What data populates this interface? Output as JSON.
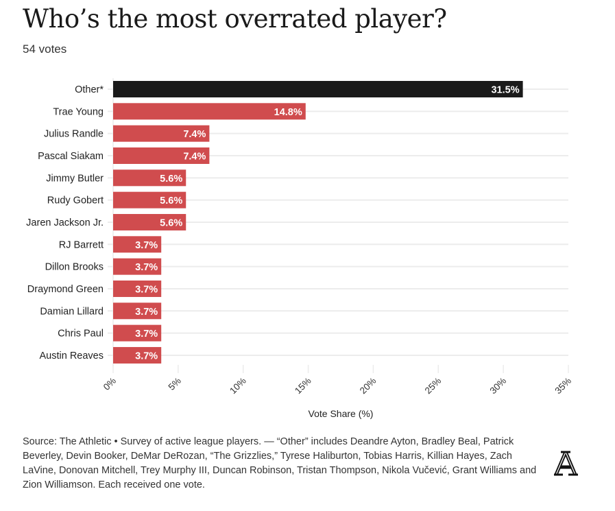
{
  "title": "Who’s the most overrated player?",
  "subtitle": "54 votes",
  "footnote": "Source: The Athletic • Survey of active league players. — “Other” includes Deandre Ayton, Bradley Beal, Patrick Beverley, Devin Booker, DeMar DeRozan, “The Grizzlies,” Tyrese Haliburton, Tobias Harris, Killian Hayes, Zach LaVine, Donovan Mitchell, Trey Murphy III, Duncan Robinson, Tristan Thompson, Nikola Vučević, Grant Williams and Zion Williamson. Each received one vote.",
  "logo": "A",
  "colors": {
    "highlight": "#1a1a1a",
    "bar": "#d04c4e",
    "grid": "#ececec"
  },
  "chart_data": {
    "type": "bar",
    "orientation": "horizontal",
    "categories": [
      "Other*",
      "Trae Young",
      "Julius Randle",
      "Pascal Siakam",
      "Jimmy Butler",
      "Rudy Gobert",
      "Jaren Jackson Jr.",
      "RJ Barrett",
      "Dillon Brooks",
      "Draymond Green",
      "Damian Lillard",
      "Chris Paul",
      "Austin Reaves"
    ],
    "values": [
      31.5,
      14.8,
      7.4,
      7.4,
      5.6,
      5.6,
      5.6,
      3.7,
      3.7,
      3.7,
      3.7,
      3.7,
      3.7
    ],
    "data_labels": [
      "31.5%",
      "14.8%",
      "7.4%",
      "7.4%",
      "5.6%",
      "5.6%",
      "5.6%",
      "3.7%",
      "3.7%",
      "3.7%",
      "3.7%",
      "3.7%",
      "3.7%"
    ],
    "xlabel": "Vote Share (%)",
    "xlim": [
      0,
      35
    ],
    "xticks": [
      0,
      5,
      10,
      15,
      20,
      25,
      30,
      35
    ],
    "xtick_labels": [
      "0%",
      "5%",
      "10%",
      "15%",
      "20%",
      "25%",
      "30%",
      "35%"
    ],
    "grid": true
  }
}
